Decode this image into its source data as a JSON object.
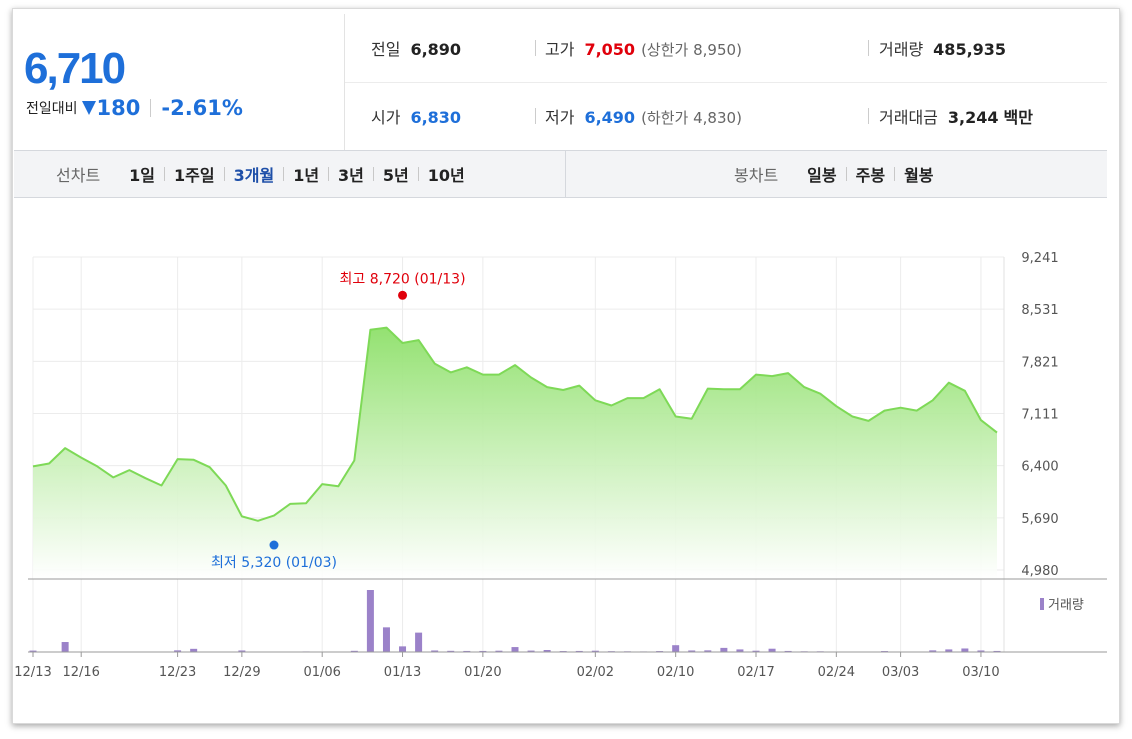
{
  "quote": {
    "price": "6,710",
    "change_label": "전일대비",
    "change_value": "180",
    "change_pct": "-2.61%",
    "direction_icon": "down-triangle-icon",
    "colors": {
      "up": "#e0000b",
      "down": "#1e6fd9"
    }
  },
  "stats": {
    "prev_close": {
      "label": "전일",
      "value": "6,890"
    },
    "high": {
      "label": "고가",
      "value": "7,050",
      "limit_label": "상한가",
      "limit_value": "8,950"
    },
    "volume": {
      "label": "거래량",
      "value": "485,935"
    },
    "open": {
      "label": "시가",
      "value": "6,830"
    },
    "low": {
      "label": "저가",
      "value": "6,490",
      "limit_label": "하한가",
      "limit_value": "4,830"
    },
    "trade_value": {
      "label": "거래대금",
      "value": "3,244",
      "unit": "백만"
    }
  },
  "period_bar": {
    "line_chart_title": "선차트",
    "line_periods": [
      "1일",
      "1주일",
      "3개월",
      "1년",
      "3년",
      "5년",
      "10년"
    ],
    "active_period": "3개월",
    "candle_chart_title": "봉차트",
    "candle_periods": [
      "일봉",
      "주봉",
      "월봉"
    ]
  },
  "chart_data": {
    "type": "area",
    "y_ticks": [
      "9,241",
      "8,531",
      "7,821",
      "7,111",
      "6,400",
      "5,690",
      "4,980"
    ],
    "ylim": [
      4980,
      9241
    ],
    "x_ticks": [
      "12/13",
      "12/16",
      "12/23",
      "12/29",
      "01/06",
      "01/13",
      "01/20",
      "02/02",
      "02/10",
      "02/17",
      "02/24",
      "03/03",
      "03/10"
    ],
    "x_tick_index": [
      0,
      3,
      9,
      13,
      18,
      23,
      28,
      35,
      40,
      45,
      50,
      54,
      59
    ],
    "grid": true,
    "series": [
      {
        "values": [
          6390,
          6430,
          6640,
          6510,
          6390,
          6240,
          6340,
          6230,
          6130,
          6490,
          6480,
          6380,
          6130,
          5710,
          5650,
          5720,
          5880,
          5890,
          6150,
          6120,
          6470,
          8250,
          8280,
          8070,
          8110,
          7790,
          7670,
          7740,
          7640,
          7640,
          7770,
          7600,
          7470,
          7430,
          7490,
          7290,
          7220,
          7320,
          7320,
          7440,
          7070,
          7040,
          7450,
          7440,
          7440,
          7640,
          7620,
          7660,
          7470,
          7380,
          7210,
          7070,
          7010,
          7150,
          7190,
          7150,
          7290,
          7530,
          7420,
          7020,
          6850
        ],
        "color": "#7ed957"
      }
    ],
    "volume": {
      "label": "거래량",
      "values": [
        12,
        3,
        85,
        3,
        2,
        3,
        2,
        4,
        3,
        14,
        27,
        3,
        2,
        13,
        2,
        2,
        3,
        5,
        3,
        2,
        10,
        528,
        210,
        48,
        165,
        13,
        10,
        9,
        9,
        11,
        42,
        12,
        17,
        8,
        9,
        11,
        7,
        6,
        5,
        8,
        58,
        13,
        14,
        35,
        22,
        11,
        28,
        9,
        6,
        6,
        3,
        2,
        3,
        8,
        2,
        2,
        14,
        22,
        30,
        13,
        9
      ],
      "color": "#9b82c9"
    },
    "annotations": {
      "max": {
        "label": "최고",
        "value": "8,720",
        "date": "(01/13)",
        "index": 23,
        "y": 8720,
        "color": "#e0000b"
      },
      "min": {
        "label": "최저",
        "value": "5,320",
        "date": "(01/03)",
        "index": 15,
        "y": 5320,
        "color": "#1e6fd9"
      }
    }
  }
}
